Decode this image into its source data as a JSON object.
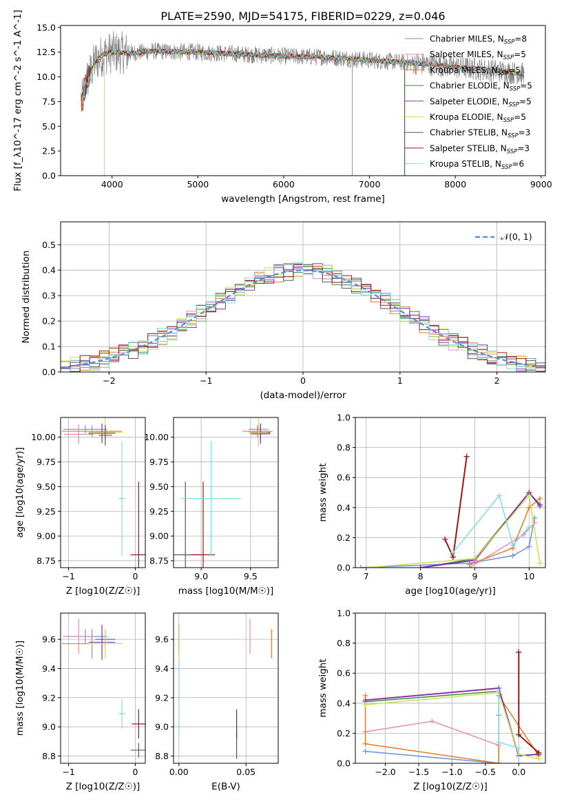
{
  "figure_title": "PLATE=2590, MJD=54175, FIBERID=0229, z=0.046",
  "colors": {
    "chabrier_miles": "#6a8fdc",
    "salpeter_miles": "#e48bbf",
    "kroupa_miles": "#e07a2c",
    "chabrier_elodie": "#3a8a3a",
    "salpeter_elodie": "#8b2fb0",
    "kroupa_elodie": "#c9e34a",
    "chabrier_stelib": "#555555",
    "salpeter_stelib": "#a01414",
    "kroupa_stelib": "#7fdde0",
    "data": "#808080",
    "normal_curve": "#5a8ad4"
  },
  "chart_data": [
    {
      "id": "spectrum",
      "type": "line",
      "xlabel": "wavelength [Angstrom, rest frame]",
      "ylabel": "Flux [f_λ10^-17 erg cm^-2 s^-1 A^-1]",
      "xlim": [
        3400,
        9050
      ],
      "ylim": [
        0,
        15.2
      ],
      "xticks": [
        4000,
        5000,
        6000,
        7000,
        8000,
        9000
      ],
      "yticks": [
        0.0,
        2.5,
        5.0,
        7.5,
        10.0,
        12.5,
        15.0
      ],
      "continuum": [
        [
          3650,
          7.5
        ],
        [
          3700,
          9.5
        ],
        [
          3800,
          11.5
        ],
        [
          3900,
          12.3
        ],
        [
          4000,
          12.5
        ],
        [
          4200,
          12.4
        ],
        [
          4500,
          12.6
        ],
        [
          5000,
          12.5
        ],
        [
          5500,
          12.3
        ],
        [
          6000,
          12.1
        ],
        [
          6500,
          12.0
        ],
        [
          7000,
          11.7
        ],
        [
          7500,
          11.4
        ],
        [
          8000,
          11.0
        ],
        [
          8500,
          10.6
        ],
        [
          8800,
          10.3
        ]
      ],
      "legend": [
        {
          "key": "chabrier_miles",
          "label": "Chabrier MILES, N",
          "sub": "SSP",
          "suffix": "=8"
        },
        {
          "key": "salpeter_miles",
          "label": "Salpeter MILES, N",
          "sub": "SSP",
          "suffix": "=5"
        },
        {
          "key": "kroupa_miles",
          "label": "Kroupa MILES, N",
          "sub": "SSP",
          "suffix": "=5"
        },
        {
          "key": "chabrier_elodie",
          "label": "Chabrier ELODIE, N",
          "sub": "SSP",
          "suffix": "=5"
        },
        {
          "key": "salpeter_elodie",
          "label": "Salpeter ELODIE, N",
          "sub": "SSP",
          "suffix": "=5"
        },
        {
          "key": "kroupa_elodie",
          "label": "Kroupa ELODIE, N",
          "sub": "SSP",
          "suffix": "=5"
        },
        {
          "key": "chabrier_stelib",
          "label": "Chabrier STELIB, N",
          "sub": "SSP",
          "suffix": "=3"
        },
        {
          "key": "salpeter_stelib",
          "label": "Salpeter STELIB, N",
          "sub": "SSP",
          "suffix": "=3"
        },
        {
          "key": "kroupa_stelib",
          "label": "Kroupa STELIB, N",
          "sub": "SSP",
          "suffix": "=6"
        }
      ]
    },
    {
      "id": "residuals",
      "type": "line",
      "xlabel": "(data-model)/error",
      "ylabel": "Normed distribution",
      "xlim": [
        -2.5,
        2.5
      ],
      "ylim": [
        0,
        0.59
      ],
      "xticks": [
        -2,
        -1,
        0,
        1,
        2
      ],
      "yticks": [
        0.0,
        0.1,
        0.2,
        0.3,
        0.4,
        0.5
      ],
      "grid": true,
      "legend_label": "𝒩(0, 1)"
    },
    {
      "id": "age_vs_Z",
      "type": "scatter",
      "xlabel": "Z [log10(Z/Z☉)]",
      "ylabel": "age  [log10(age/yr)]",
      "xlim": [
        -1.12,
        0.15
      ],
      "ylim": [
        8.68,
        10.2
      ],
      "xticks": [
        -1,
        0
      ],
      "yticks": [
        8.75,
        9.0,
        9.25,
        9.5,
        9.75,
        10.0
      ],
      "points": [
        {
          "key": "chabrier_miles",
          "x": -0.75,
          "y": 10.08,
          "xerr": 0.33,
          "yerr": 0.04
        },
        {
          "key": "salpeter_miles",
          "x": -0.85,
          "y": 10.03,
          "xerr": 0.22,
          "yerr": 0.1
        },
        {
          "key": "kroupa_miles",
          "x": -0.65,
          "y": 10.06,
          "xerr": 0.45,
          "yerr": 0.06
        },
        {
          "key": "chabrier_elodie",
          "x": -0.45,
          "y": 10.05,
          "xerr": 0.15,
          "yerr": 0.08
        },
        {
          "key": "salpeter_elodie",
          "x": -0.5,
          "y": 10.04,
          "xerr": 0.2,
          "yerr": 0.1
        },
        {
          "key": "kroupa_elodie",
          "x": -0.45,
          "y": 10.05,
          "xerr": 0.25,
          "yerr": 0.15
        },
        {
          "key": "chabrier_stelib",
          "x": -0.45,
          "y": 10.02,
          "xerr": 0.1,
          "yerr": 0.1
        },
        {
          "key": "salpeter_stelib",
          "x": 0.05,
          "y": 8.81,
          "xerr": 0.12,
          "yerr": 0.74
        },
        {
          "key": "kroupa_stelib",
          "x": -0.2,
          "y": 9.38,
          "xerr": 0.05,
          "yerr": 0.58
        }
      ]
    },
    {
      "id": "age_vs_mass",
      "type": "scatter",
      "xlabel": "mass [log10(M/M☉)]",
      "ylabel": "",
      "xlim": [
        8.72,
        9.78
      ],
      "ylim": [
        8.68,
        10.2
      ],
      "xticks": [
        9.0,
        9.5
      ],
      "yticks": [
        8.75,
        9.0,
        9.25,
        9.5,
        9.75,
        10.0
      ],
      "points": [
        {
          "key": "chabrier_miles",
          "x": 9.58,
          "y": 10.08,
          "xerr": 0.1,
          "yerr": 0.04
        },
        {
          "key": "salpeter_miles",
          "x": 9.6,
          "y": 10.03,
          "xerr": 0.1,
          "yerr": 0.1
        },
        {
          "key": "kroupa_miles",
          "x": 9.57,
          "y": 10.06,
          "xerr": 0.15,
          "yerr": 0.06
        },
        {
          "key": "chabrier_elodie",
          "x": 9.6,
          "y": 10.05,
          "xerr": 0.1,
          "yerr": 0.08
        },
        {
          "key": "salpeter_elodie",
          "x": 9.6,
          "y": 10.04,
          "xerr": 0.1,
          "yerr": 0.1
        },
        {
          "key": "kroupa_elodie",
          "x": 9.58,
          "y": 10.05,
          "xerr": 0.1,
          "yerr": 0.15
        },
        {
          "key": "chabrier_stelib",
          "x": 8.84,
          "y": 8.81,
          "xerr": 0.15,
          "yerr": 0.74
        },
        {
          "key": "salpeter_stelib",
          "x": 9.02,
          "y": 8.81,
          "xerr": 0.12,
          "yerr": 0.74
        },
        {
          "key": "kroupa_stelib",
          "x": 9.1,
          "y": 9.38,
          "xerr": 0.3,
          "yerr": 0.58
        }
      ]
    },
    {
      "id": "massweight_vs_age",
      "type": "line",
      "xlabel": "age  [log10(age/yr)]",
      "ylabel": "mass weight",
      "xlim": [
        6.8,
        10.3
      ],
      "ylim": [
        0,
        1.0
      ],
      "xticks": [
        7,
        8,
        9,
        10
      ],
      "yticks": [
        0.0,
        0.2,
        0.4,
        0.6,
        0.8,
        1.0
      ],
      "series": [
        {
          "key": "chabrier_miles",
          "x": [
            6.9,
            8.9,
            9.7,
            10.0,
            10.1
          ],
          "y": [
            0.0,
            0.03,
            0.08,
            0.14,
            0.33
          ]
        },
        {
          "key": "salpeter_miles",
          "x": [
            8.9,
            9.9,
            10.1
          ],
          "y": [
            0.0,
            0.22,
            0.3
          ]
        },
        {
          "key": "kroupa_miles",
          "x": [
            8.9,
            9.7,
            10.0,
            10.2
          ],
          "y": [
            0.02,
            0.13,
            0.4,
            0.46
          ]
        },
        {
          "key": "chabrier_elodie",
          "x": [
            8.0,
            9.0,
            10.0,
            10.2
          ],
          "y": [
            0.0,
            0.06,
            0.5,
            0.42
          ]
        },
        {
          "key": "salpeter_elodie",
          "x": [
            8.0,
            9.0,
            10.0,
            10.2
          ],
          "y": [
            0.0,
            0.05,
            0.5,
            0.41
          ]
        },
        {
          "key": "kroupa_elodie",
          "x": [
            7.0,
            9.0,
            10.0,
            10.2
          ],
          "y": [
            0.0,
            0.06,
            0.48,
            0.03
          ]
        },
        {
          "key": "chabrier_stelib",
          "x": [
            8.6,
            8.85
          ],
          "y": [
            0.07,
            0.74
          ]
        },
        {
          "key": "salpeter_stelib",
          "x": [
            8.45,
            8.6,
            8.85
          ],
          "y": [
            0.19,
            0.07,
            0.74
          ]
        },
        {
          "key": "kroupa_stelib",
          "x": [
            8.6,
            9.45,
            9.7,
            10.0
          ],
          "y": [
            0.1,
            0.48,
            0.15,
            0.27
          ]
        }
      ]
    },
    {
      "id": "mass_vs_Z",
      "type": "scatter",
      "xlabel": "Z [log10(Z/Z☉)]",
      "ylabel": "mass [log10(M/M☉)]",
      "xlim": [
        -1.12,
        0.15
      ],
      "ylim": [
        8.75,
        9.78
      ],
      "xticks": [
        -1,
        0
      ],
      "yticks": [
        8.8,
        9.0,
        9.2,
        9.4,
        9.6
      ],
      "points": [
        {
          "key": "chabrier_miles",
          "x": -0.75,
          "y": 9.62,
          "xerr": 0.33,
          "yerr": 0.05
        },
        {
          "key": "salpeter_miles",
          "x": -0.85,
          "y": 9.62,
          "xerr": 0.22,
          "yerr": 0.12
        },
        {
          "key": "kroupa_miles",
          "x": -0.65,
          "y": 9.57,
          "xerr": 0.45,
          "yerr": 0.1
        },
        {
          "key": "chabrier_elodie",
          "x": -0.45,
          "y": 9.6,
          "xerr": 0.15,
          "yerr": 0.07
        },
        {
          "key": "salpeter_elodie",
          "x": -0.5,
          "y": 9.58,
          "xerr": 0.2,
          "yerr": 0.12
        },
        {
          "key": "kroupa_elodie",
          "x": -0.45,
          "y": 9.57,
          "xerr": 0.25,
          "yerr": 0.1
        },
        {
          "key": "chabrier_stelib",
          "x": 0.05,
          "y": 8.84,
          "xerr": 0.12,
          "yerr": 0.05
        },
        {
          "key": "salpeter_stelib",
          "x": 0.05,
          "y": 9.02,
          "xerr": 0.1,
          "yerr": 0.1
        },
        {
          "key": "kroupa_stelib",
          "x": -0.2,
          "y": 9.09,
          "xerr": 0.05,
          "yerr": 0.1
        }
      ]
    },
    {
      "id": "mass_vs_ebv",
      "type": "scatter",
      "xlabel": "E(B-V)",
      "ylabel": "",
      "xlim": [
        -0.004,
        0.074
      ],
      "ylim": [
        8.75,
        9.78
      ],
      "xticks": [
        0.0,
        0.05
      ],
      "yticks": [
        8.8,
        9.0,
        9.2,
        9.4,
        9.6
      ],
      "points": [
        {
          "key": "chabrier_miles",
          "x": 0.0,
          "y": 9.62,
          "xerr": 0.0,
          "yerr": 0.05
        },
        {
          "key": "salpeter_miles",
          "x": 0.053,
          "y": 9.62,
          "xerr": 0.0,
          "yerr": 0.12
        },
        {
          "key": "kroupa_miles",
          "x": 0.069,
          "y": 9.57,
          "xerr": 0.0,
          "yerr": 0.1
        },
        {
          "key": "chabrier_elodie",
          "x": 0.0,
          "y": 9.6,
          "xerr": 0.0,
          "yerr": 0.07
        },
        {
          "key": "salpeter_elodie",
          "x": 0.0,
          "y": 9.6,
          "xerr": 0.0,
          "yerr": 0.1
        },
        {
          "key": "kroupa_elodie",
          "x": 0.0,
          "y": 9.57,
          "xerr": 0.0,
          "yerr": 0.15
        },
        {
          "key": "chabrier_stelib",
          "x": 0.043,
          "y": 8.88,
          "xerr": 0.0,
          "yerr": 0.1
        },
        {
          "key": "salpeter_stelib",
          "x": 0.043,
          "y": 9.02,
          "xerr": 0.0,
          "yerr": 0.1
        },
        {
          "key": "kroupa_stelib",
          "x": 0.0,
          "y": 9.2,
          "xerr": 0.0,
          "yerr": 0.25
        }
      ]
    },
    {
      "id": "massweight_vs_Z",
      "type": "line",
      "xlabel": "Z [log10(Z/Z☉)]",
      "ylabel": "mass weight",
      "xlim": [
        -2.45,
        0.4
      ],
      "ylim": [
        0,
        1.0
      ],
      "xticks": [
        -2.0,
        -1.5,
        -1.0,
        -0.5,
        0.0
      ],
      "yticks": [
        0.0,
        0.2,
        0.4,
        0.6,
        0.8,
        1.0
      ],
      "series": [
        {
          "key": "chabrier_miles",
          "x": [
            -2.3,
            -0.3,
            -0.3,
            -0.3
          ],
          "y": [
            0.08,
            0.0,
            0.32,
            0.0
          ]
        },
        {
          "key": "salpeter_miles",
          "x": [
            -2.3,
            -1.3,
            -0.3
          ],
          "y": [
            0.21,
            0.28,
            0.12
          ]
        },
        {
          "key": "kroupa_miles",
          "x": [
            -2.3,
            -2.3,
            -0.3,
            -0.3,
            0.3
          ],
          "y": [
            0.45,
            0.13,
            0.0,
            0.45,
            0.05
          ]
        },
        {
          "key": "chabrier_elodie",
          "x": [
            -2.3,
            -0.3,
            0.0,
            0.3
          ],
          "y": [
            0.41,
            0.48,
            0.05,
            0.06
          ]
        },
        {
          "key": "salpeter_elodie",
          "x": [
            -2.3,
            -0.3,
            0.0,
            0.3
          ],
          "y": [
            0.42,
            0.5,
            0.05,
            0.06
          ]
        },
        {
          "key": "kroupa_elodie",
          "x": [
            -2.3,
            -0.3,
            0.0,
            0.3
          ],
          "y": [
            0.39,
            0.47,
            0.06,
            0.03
          ]
        },
        {
          "key": "chabrier_stelib",
          "x": [
            0.0,
            0.0,
            0.3
          ],
          "y": [
            0.74,
            0.19,
            0.07
          ]
        },
        {
          "key": "salpeter_stelib",
          "x": [
            0.0,
            0.0,
            0.3
          ],
          "y": [
            0.74,
            0.19,
            0.07
          ]
        },
        {
          "key": "kroupa_stelib",
          "x": [
            -0.3,
            -0.3,
            0.0,
            0.0
          ],
          "y": [
            0.48,
            0.14,
            0.1,
            0.0
          ]
        }
      ]
    }
  ]
}
